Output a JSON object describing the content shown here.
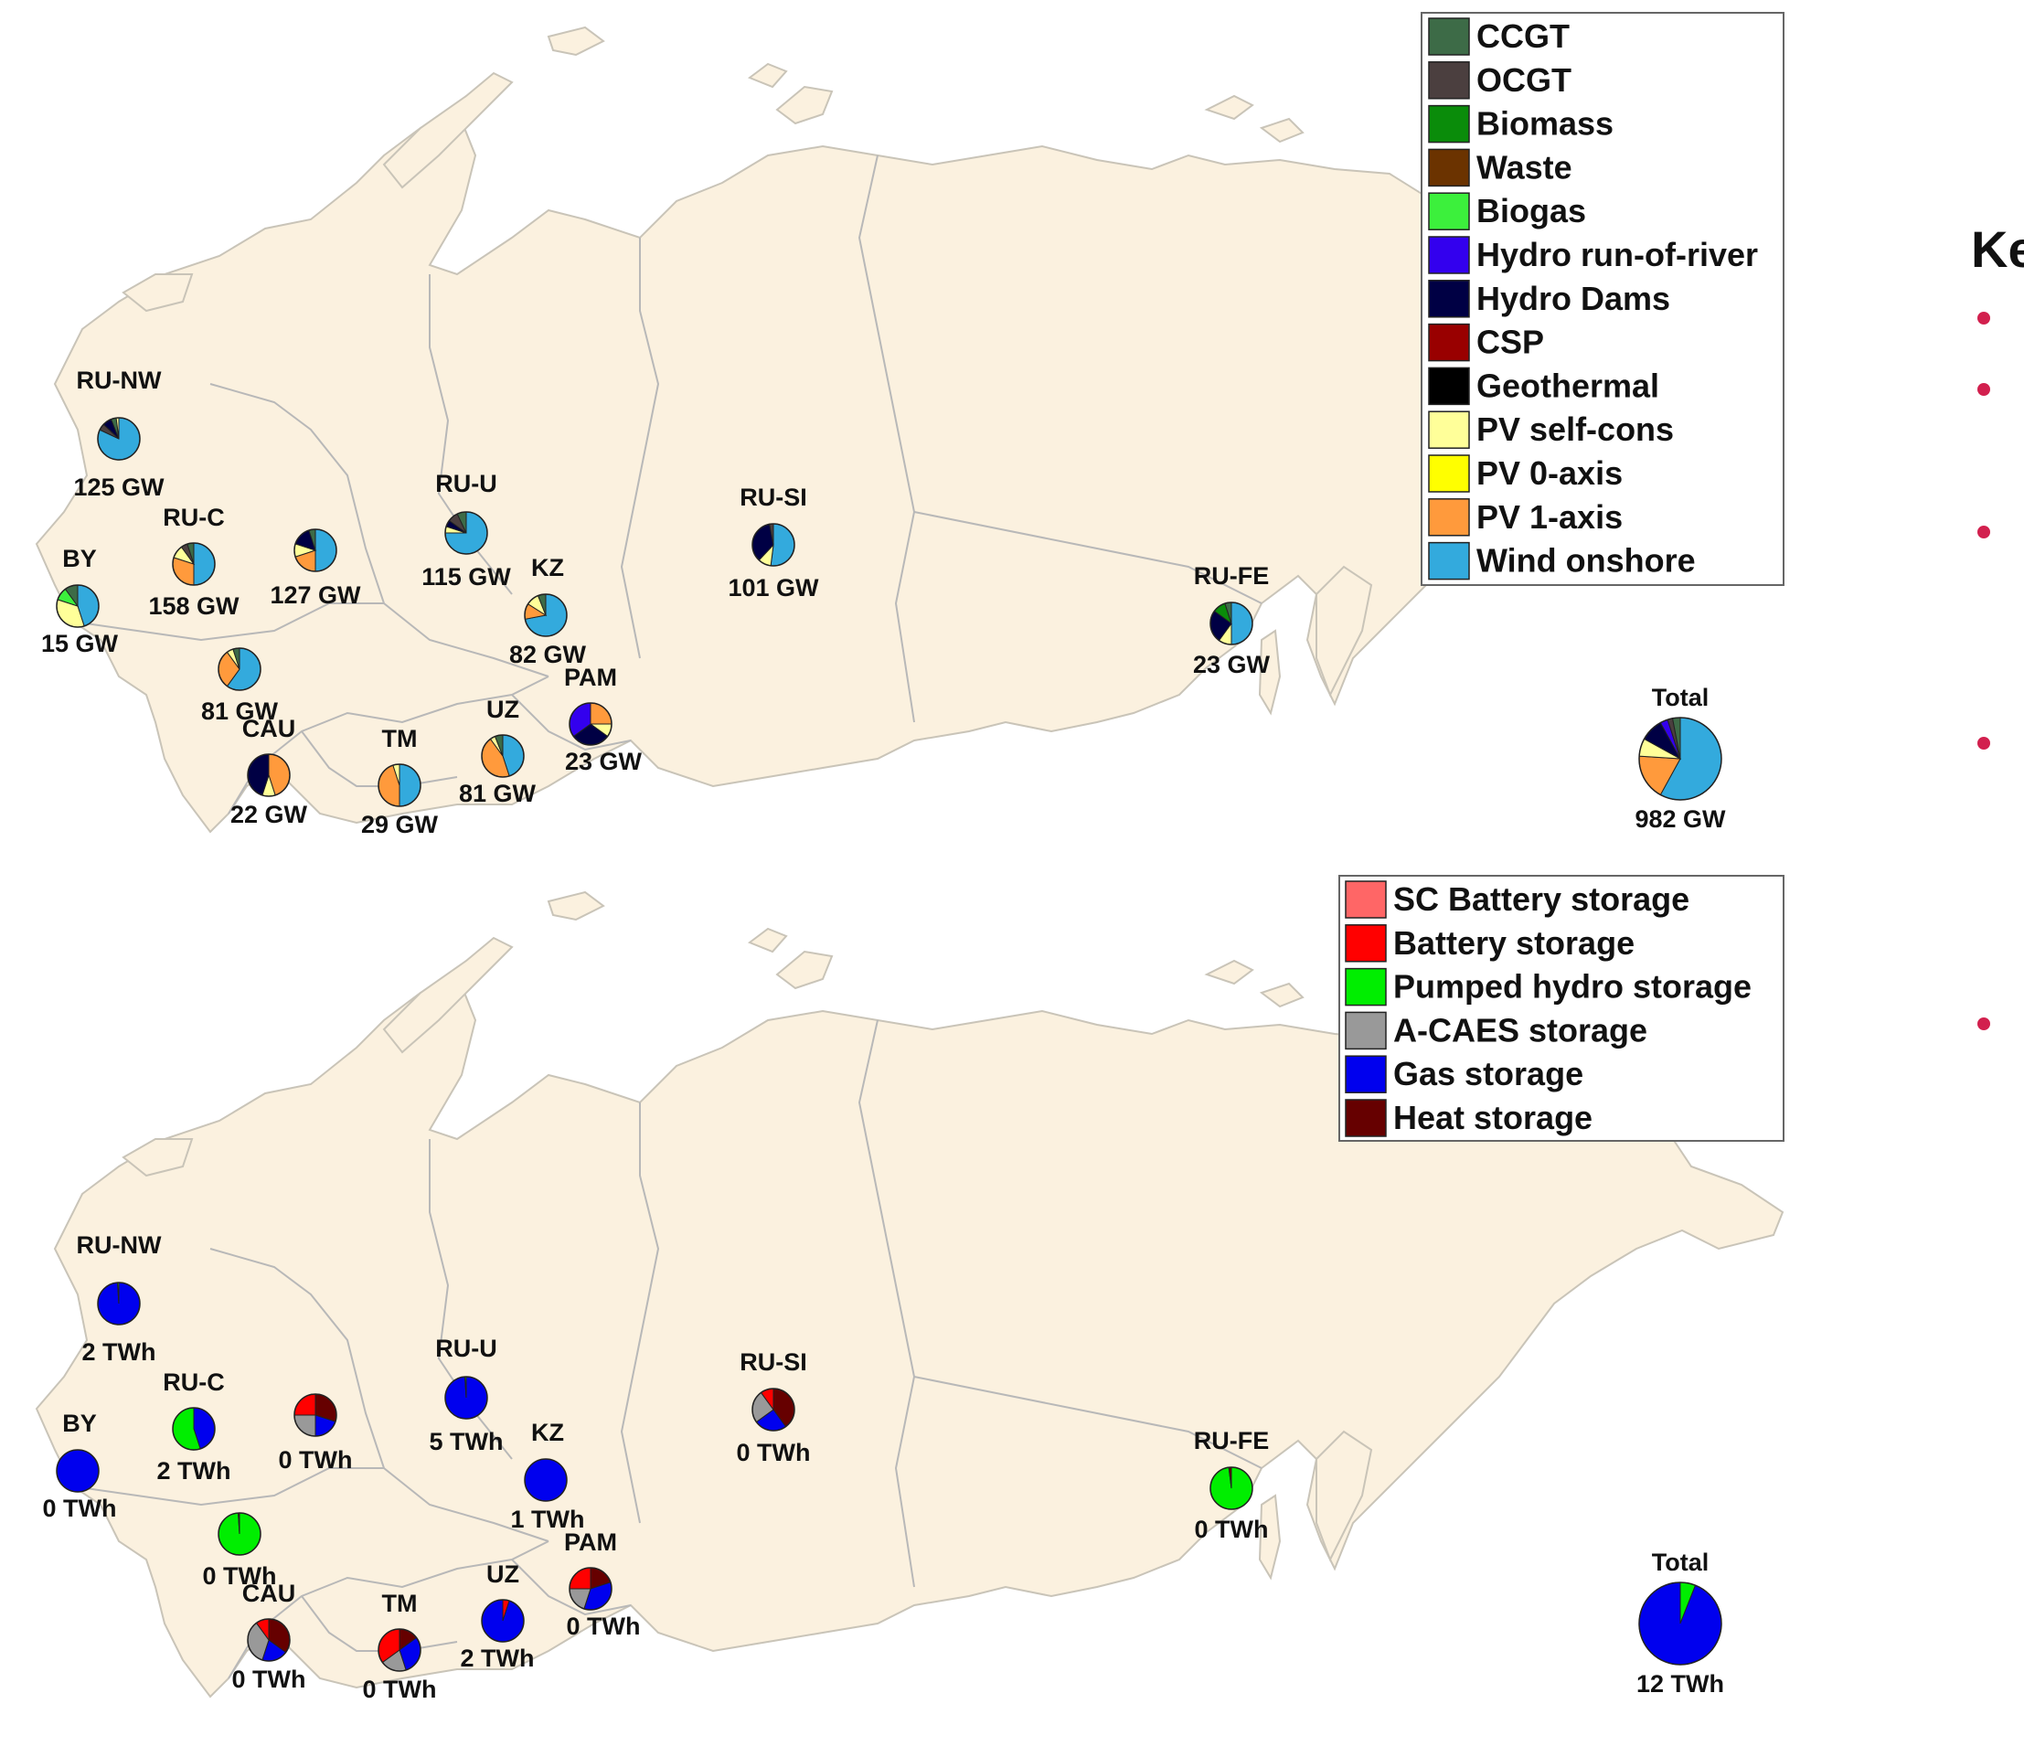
{
  "colors": {
    "land": "#fbf1df",
    "border": "#b8b8b8",
    "bullet": "#d2204e"
  },
  "side_panel": {
    "title_fragment": "Ke"
  },
  "generation_map": {
    "total_title": "Total",
    "legend": [
      {
        "key": "ccgt",
        "label": "CCGT",
        "color": "#3d6b47"
      },
      {
        "key": "ocgt",
        "label": "OCGT",
        "color": "#4b3f3f"
      },
      {
        "key": "biomass",
        "label": "Biomass",
        "color": "#0a8c0a"
      },
      {
        "key": "waste",
        "label": "Waste",
        "color": "#6b3300"
      },
      {
        "key": "biogas",
        "label": "Biogas",
        "color": "#3cf03c"
      },
      {
        "key": "hydro_ror",
        "label": "Hydro run-of-river",
        "color": "#3300ee"
      },
      {
        "key": "hydro_dams",
        "label": "Hydro Dams",
        "color": "#000044"
      },
      {
        "key": "csp",
        "label": "CSP",
        "color": "#990000"
      },
      {
        "key": "geothermal",
        "label": "Geothermal",
        "color": "#000000"
      },
      {
        "key": "pv_self",
        "label": "PV self-cons",
        "color": "#ffff99"
      },
      {
        "key": "pv_0axis",
        "label": "PV 0-axis",
        "color": "#ffff00"
      },
      {
        "key": "pv_1axis",
        "label": "PV 1-axis",
        "color": "#ff9a3c"
      },
      {
        "key": "wind_on",
        "label": "Wind onshore",
        "color": "#33aadd"
      }
    ],
    "regions": [
      {
        "id": "RU-NW",
        "name": "RU-NW",
        "value": "125 GW",
        "mix": {
          "wind_on": 0.82,
          "ocgt": 0.05,
          "hydro_dams": 0.07,
          "ccgt": 0.04,
          "pv_self": 0.02
        }
      },
      {
        "id": "RU-C",
        "name": "RU-C",
        "value": "158 GW",
        "mix": {
          "wind_on": 0.5,
          "pv_1axis": 0.3,
          "pv_self": 0.1,
          "ocgt": 0.05,
          "ccgt": 0.05
        }
      },
      {
        "id": "BY",
        "name": "BY",
        "value": "15 GW",
        "mix": {
          "wind_on": 0.45,
          "pv_self": 0.35,
          "biogas": 0.1,
          "ccgt": 0.1
        }
      },
      {
        "id": "VOLGA",
        "name": "",
        "value": "127 GW",
        "mix": {
          "wind_on": 0.5,
          "pv_1axis": 0.2,
          "pv_self": 0.1,
          "hydro_dams": 0.15,
          "ccgt": 0.05
        }
      },
      {
        "id": "RU-U",
        "name": "RU-U",
        "value": "115 GW",
        "mix": {
          "wind_on": 0.75,
          "pv_self": 0.05,
          "hydro_dams": 0.05,
          "ocgt": 0.08,
          "ccgt": 0.07
        }
      },
      {
        "id": "KZ",
        "name": "KZ",
        "value": "82 GW",
        "mix": {
          "wind_on": 0.72,
          "pv_1axis": 0.12,
          "pv_self": 0.1,
          "ccgt": 0.06
        }
      },
      {
        "id": "RU-SI",
        "name": "RU-SI",
        "value": "101 GW",
        "mix": {
          "wind_on": 0.52,
          "pv_self": 0.1,
          "hydro_dams": 0.35,
          "ocgt": 0.03
        }
      },
      {
        "id": "RU-FE",
        "name": "RU-FE",
        "value": "23 GW",
        "mix": {
          "wind_on": 0.5,
          "pv_self": 0.1,
          "hydro_dams": 0.25,
          "biomass": 0.1,
          "ccgt": 0.05
        }
      },
      {
        "id": "RU-S",
        "name": "",
        "value": "81 GW",
        "mix": {
          "wind_on": 0.6,
          "pv_1axis": 0.3,
          "pv_self": 0.05,
          "ccgt": 0.05
        }
      },
      {
        "id": "CAU",
        "name": "CAU",
        "value": "22 GW",
        "mix": {
          "pv_1axis": 0.45,
          "pv_self": 0.1,
          "hydro_dams": 0.45
        }
      },
      {
        "id": "TM",
        "name": "TM",
        "value": "29 GW",
        "mix": {
          "wind_on": 0.5,
          "pv_1axis": 0.45,
          "pv_self": 0.05
        }
      },
      {
        "id": "UZ",
        "name": "UZ",
        "value": "81 GW",
        "mix": {
          "wind_on": 0.45,
          "pv_1axis": 0.45,
          "pv_self": 0.04,
          "ccgt": 0.06
        }
      },
      {
        "id": "PAM",
        "name": "PAM",
        "value": "23 GW",
        "mix": {
          "pv_1axis": 0.25,
          "pv_self": 0.1,
          "hydro_dams": 0.3,
          "hydro_ror": 0.35
        }
      }
    ],
    "total": {
      "value": "982 GW",
      "mix": {
        "wind_on": 0.58,
        "pv_1axis": 0.18,
        "pv_self": 0.07,
        "hydro_dams": 0.09,
        "hydro_ror": 0.03,
        "ocgt": 0.02,
        "ccgt": 0.03
      }
    }
  },
  "storage_map": {
    "total_title": "Total",
    "legend": [
      {
        "key": "sc_battery",
        "label": "SC Battery storage",
        "color": "#ff6666"
      },
      {
        "key": "battery",
        "label": "Battery storage",
        "color": "#ff0000"
      },
      {
        "key": "phs",
        "label": "Pumped hydro storage",
        "color": "#00ee00"
      },
      {
        "key": "acaes",
        "label": "A-CAES storage",
        "color": "#999999"
      },
      {
        "key": "gas",
        "label": "Gas storage",
        "color": "#0000ee"
      },
      {
        "key": "heat",
        "label": "Heat storage",
        "color": "#660000"
      }
    ],
    "regions": [
      {
        "id": "RU-NW",
        "name": "RU-NW",
        "value": "2 TWh",
        "mix": {
          "gas": 0.99,
          "phs": 0.01
        }
      },
      {
        "id": "RU-C",
        "name": "RU-C",
        "value": "2 TWh",
        "mix": {
          "gas": 0.45,
          "phs": 0.55
        }
      },
      {
        "id": "BY",
        "name": "BY",
        "value": "0 TWh",
        "mix": {
          "gas": 1.0
        }
      },
      {
        "id": "VOLGA",
        "name": "",
        "value": "0 TWh",
        "mix": {
          "heat": 0.3,
          "gas": 0.2,
          "acaes": 0.25,
          "battery": 0.25
        }
      },
      {
        "id": "RU-U",
        "name": "RU-U",
        "value": "5 TWh",
        "mix": {
          "gas": 0.99,
          "phs": 0.01
        }
      },
      {
        "id": "KZ",
        "name": "KZ",
        "value": "1 TWh",
        "mix": {
          "gas": 1.0
        }
      },
      {
        "id": "RU-SI",
        "name": "RU-SI",
        "value": "0 TWh",
        "mix": {
          "heat": 0.4,
          "gas": 0.25,
          "acaes": 0.25,
          "battery": 0.1
        }
      },
      {
        "id": "RU-FE",
        "name": "RU-FE",
        "value": "0 TWh",
        "mix": {
          "phs": 0.98,
          "heat": 0.02
        }
      },
      {
        "id": "RU-S",
        "name": "",
        "value": "0 TWh",
        "mix": {
          "phs": 0.99,
          "heat": 0.01
        }
      },
      {
        "id": "CAU",
        "name": "CAU",
        "value": "0 TWh",
        "mix": {
          "heat": 0.35,
          "gas": 0.2,
          "acaes": 0.35,
          "battery": 0.1
        }
      },
      {
        "id": "TM",
        "name": "TM",
        "value": "0 TWh",
        "mix": {
          "heat": 0.15,
          "gas": 0.3,
          "acaes": 0.2,
          "battery": 0.35
        }
      },
      {
        "id": "UZ",
        "name": "UZ",
        "value": "2 TWh",
        "mix": {
          "battery": 0.05,
          "gas": 0.95
        }
      },
      {
        "id": "PAM",
        "name": "PAM",
        "value": "0 TWh",
        "mix": {
          "heat": 0.2,
          "gas": 0.35,
          "acaes": 0.2,
          "battery": 0.25
        }
      }
    ],
    "total": {
      "value": "12 TWh",
      "mix": {
        "phs": 0.06,
        "gas": 0.94
      }
    }
  }
}
